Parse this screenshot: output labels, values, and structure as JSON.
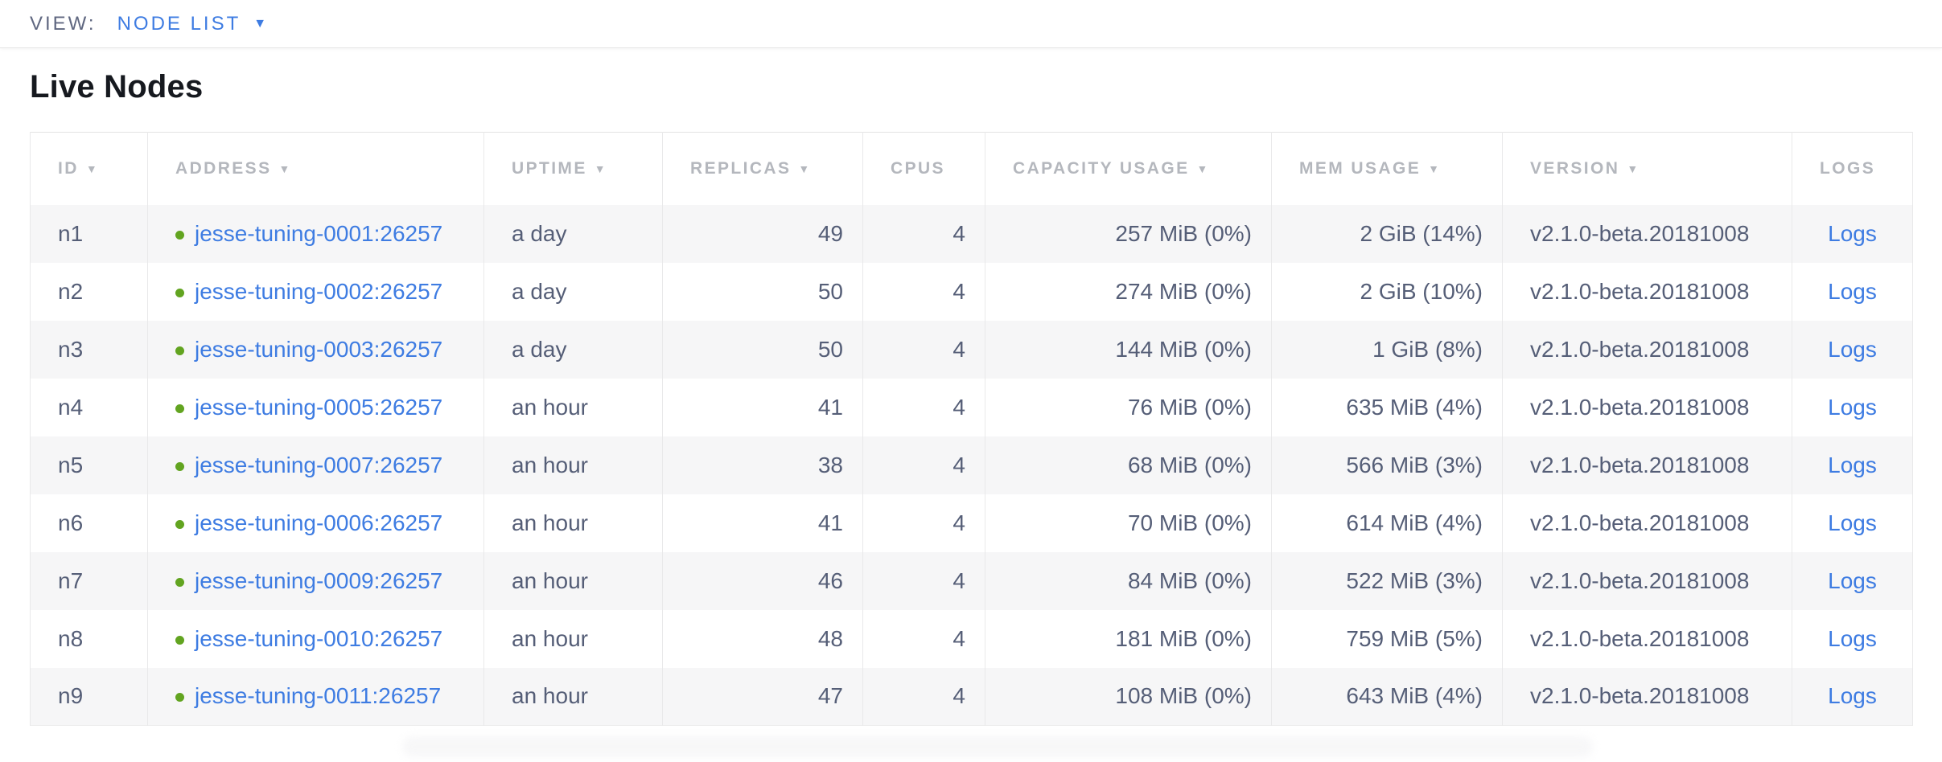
{
  "colors": {
    "link_blue": "#3e7ce2",
    "status_green": "#62a420",
    "header_gray": "#b4b7bd",
    "cell_text_slate": "#555e77",
    "row_stripe": "#f6f6f7"
  },
  "view_bar": {
    "label": "VIEW:",
    "selected_view": "NODE LIST",
    "dropdown_icon": "▼"
  },
  "page": {
    "title": "Live Nodes"
  },
  "table": {
    "sort_arrow_icon": "▼",
    "logs_label": "Logs",
    "columns": [
      {
        "key": "id",
        "label": "ID",
        "sortable": true,
        "align": "left"
      },
      {
        "key": "address",
        "label": "ADDRESS",
        "sortable": true,
        "align": "left"
      },
      {
        "key": "uptime",
        "label": "UPTIME",
        "sortable": true,
        "align": "left"
      },
      {
        "key": "replicas",
        "label": "REPLICAS",
        "sortable": true,
        "align": "right"
      },
      {
        "key": "cpus",
        "label": "CPUS",
        "sortable": false,
        "align": "right"
      },
      {
        "key": "capacity",
        "label": "CAPACITY USAGE",
        "sortable": true,
        "align": "right"
      },
      {
        "key": "mem",
        "label": "MEM USAGE",
        "sortable": true,
        "align": "right"
      },
      {
        "key": "version",
        "label": "VERSION",
        "sortable": true,
        "align": "left"
      },
      {
        "key": "logs",
        "label": "LOGS",
        "sortable": false,
        "align": "center"
      }
    ],
    "rows": [
      {
        "id": "n1",
        "address": "jesse-tuning-0001:26257",
        "uptime": "a day",
        "replicas": 49,
        "cpus": 4,
        "capacity": "257 MiB (0%)",
        "mem": "2 GiB (14%)",
        "version": "v2.1.0-beta.20181008"
      },
      {
        "id": "n2",
        "address": "jesse-tuning-0002:26257",
        "uptime": "a day",
        "replicas": 50,
        "cpus": 4,
        "capacity": "274 MiB (0%)",
        "mem": "2 GiB (10%)",
        "version": "v2.1.0-beta.20181008"
      },
      {
        "id": "n3",
        "address": "jesse-tuning-0003:26257",
        "uptime": "a day",
        "replicas": 50,
        "cpus": 4,
        "capacity": "144 MiB (0%)",
        "mem": "1 GiB (8%)",
        "version": "v2.1.0-beta.20181008"
      },
      {
        "id": "n4",
        "address": "jesse-tuning-0005:26257",
        "uptime": "an hour",
        "replicas": 41,
        "cpus": 4,
        "capacity": "76 MiB (0%)",
        "mem": "635 MiB (4%)",
        "version": "v2.1.0-beta.20181008"
      },
      {
        "id": "n5",
        "address": "jesse-tuning-0007:26257",
        "uptime": "an hour",
        "replicas": 38,
        "cpus": 4,
        "capacity": "68 MiB (0%)",
        "mem": "566 MiB (3%)",
        "version": "v2.1.0-beta.20181008"
      },
      {
        "id": "n6",
        "address": "jesse-tuning-0006:26257",
        "uptime": "an hour",
        "replicas": 41,
        "cpus": 4,
        "capacity": "70 MiB (0%)",
        "mem": "614 MiB (4%)",
        "version": "v2.1.0-beta.20181008"
      },
      {
        "id": "n7",
        "address": "jesse-tuning-0009:26257",
        "uptime": "an hour",
        "replicas": 46,
        "cpus": 4,
        "capacity": "84 MiB (0%)",
        "mem": "522 MiB (3%)",
        "version": "v2.1.0-beta.20181008"
      },
      {
        "id": "n8",
        "address": "jesse-tuning-0010:26257",
        "uptime": "an hour",
        "replicas": 48,
        "cpus": 4,
        "capacity": "181 MiB (0%)",
        "mem": "759 MiB (5%)",
        "version": "v2.1.0-beta.20181008"
      },
      {
        "id": "n9",
        "address": "jesse-tuning-0011:26257",
        "uptime": "an hour",
        "replicas": 47,
        "cpus": 4,
        "capacity": "108 MiB (0%)",
        "mem": "643 MiB (4%)",
        "version": "v2.1.0-beta.20181008"
      }
    ]
  }
}
